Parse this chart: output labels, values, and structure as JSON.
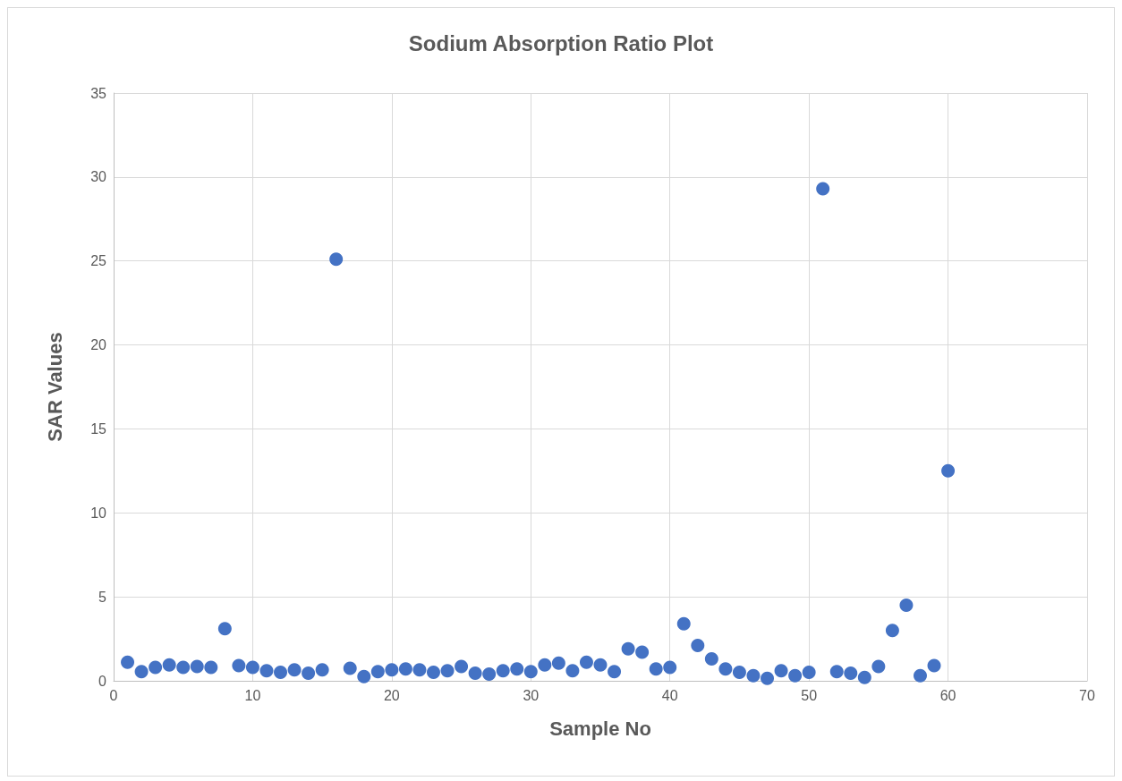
{
  "chart_data": {
    "type": "scatter",
    "title": "Sodium Absorption Ratio Plot",
    "xlabel": "Sample No",
    "ylabel": "SAR Values",
    "x": [
      1,
      2,
      3,
      4,
      5,
      6,
      7,
      8,
      9,
      10,
      11,
      12,
      13,
      14,
      15,
      16,
      17,
      18,
      19,
      20,
      21,
      22,
      23,
      24,
      25,
      26,
      27,
      28,
      29,
      30,
      31,
      32,
      33,
      34,
      35,
      36,
      37,
      38,
      39,
      40,
      41,
      42,
      43,
      44,
      45,
      46,
      47,
      48,
      49,
      50,
      51,
      52,
      53,
      54,
      55,
      56,
      57,
      58,
      59,
      60
    ],
    "series": [
      {
        "color": "#4472c4",
        "values": [
          1.1,
          0.55,
          0.8,
          0.95,
          0.8,
          0.85,
          0.8,
          3.1,
          0.9,
          0.8,
          0.6,
          0.5,
          0.65,
          0.45,
          0.65,
          25.1,
          0.75,
          0.25,
          0.55,
          0.65,
          0.7,
          0.65,
          0.5,
          0.6,
          0.85,
          0.45,
          0.4,
          0.6,
          0.7,
          0.55,
          0.95,
          1.05,
          0.6,
          1.1,
          0.95,
          0.55,
          1.9,
          1.7,
          0.7,
          0.8,
          3.4,
          2.1,
          1.3,
          0.7,
          0.5,
          0.3,
          0.15,
          0.6,
          0.3,
          0.5,
          29.3,
          0.55,
          0.45,
          0.2,
          0.85,
          3.0,
          4.5,
          0.3,
          0.9,
          12.5
        ]
      }
    ],
    "xlim": [
      0,
      70
    ],
    "xticks": [
      0,
      10,
      20,
      30,
      40,
      50,
      60,
      70
    ],
    "ylim": [
      0,
      35
    ],
    "yticks": [
      0,
      5,
      10,
      15,
      20,
      25,
      30,
      35
    ],
    "grid": true,
    "marker": "circle"
  }
}
